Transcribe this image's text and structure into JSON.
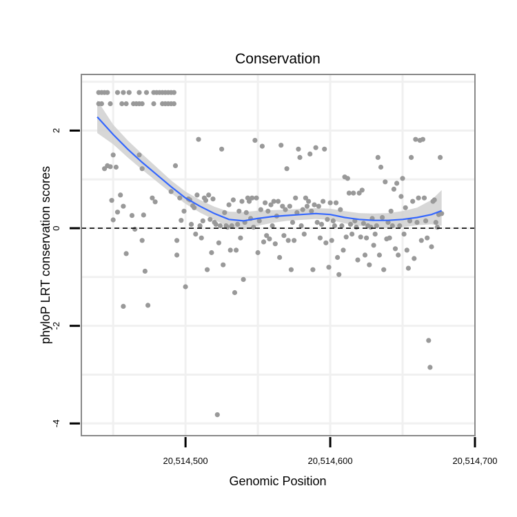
{
  "chart_data": {
    "type": "scatter",
    "title": "Conservation",
    "xlabel": "Genomic Position",
    "ylabel": "phyloP LRT conservation scores",
    "xlim": [
      20514428,
      20514700
    ],
    "ylim": [
      -4.25,
      3.15
    ],
    "x_ticks": [
      {
        "value": 20514500,
        "label": "20,514,500"
      },
      {
        "value": 20514600,
        "label": "20,514,600"
      },
      {
        "value": 20514700,
        "label": "20,514,700"
      }
    ],
    "y_ticks": [
      {
        "value": -4,
        "label": "-4"
      },
      {
        "value": -2,
        "label": "-2"
      },
      {
        "value": 0,
        "label": "0"
      },
      {
        "value": 2,
        "label": "2"
      }
    ],
    "reference_line": {
      "y": 0,
      "style": "dashed"
    },
    "colors": {
      "points": "#999999",
      "smooth_line": "#3366ff",
      "confidence_band": "#d0d0d0",
      "panel_border": "#888888",
      "grid": "#f0f0f0"
    },
    "series": [
      {
        "name": "phyloP scores",
        "points": [
          [
            20514440,
            2.78
          ],
          [
            20514442,
            2.78
          ],
          [
            20514444,
            2.78
          ],
          [
            20514446,
            2.78
          ],
          [
            20514453,
            2.78
          ],
          [
            20514457,
            2.78
          ],
          [
            20514461,
            2.78
          ],
          [
            20514468,
            2.78
          ],
          [
            20514473,
            2.78
          ],
          [
            20514478,
            2.78
          ],
          [
            20514480,
            2.78
          ],
          [
            20514482,
            2.78
          ],
          [
            20514484,
            2.78
          ],
          [
            20514486,
            2.78
          ],
          [
            20514488,
            2.78
          ],
          [
            20514490,
            2.78
          ],
          [
            20514492,
            2.78
          ],
          [
            20514440,
            2.55
          ],
          [
            20514442,
            2.55
          ],
          [
            20514448,
            2.55
          ],
          [
            20514456,
            2.55
          ],
          [
            20514459,
            2.55
          ],
          [
            20514464,
            2.55
          ],
          [
            20514466,
            2.55
          ],
          [
            20514468,
            2.55
          ],
          [
            20514470,
            2.55
          ],
          [
            20514478,
            2.55
          ],
          [
            20514484,
            2.55
          ],
          [
            20514486,
            2.55
          ],
          [
            20514488,
            2.55
          ],
          [
            20514490,
            2.55
          ],
          [
            20514492,
            2.55
          ],
          [
            20514444,
            1.22
          ],
          [
            20514446,
            1.28
          ],
          [
            20514448,
            1.26
          ],
          [
            20514450,
            1.5
          ],
          [
            20514452,
            1.25
          ],
          [
            20514455,
            0.68
          ],
          [
            20514457,
            0.45
          ],
          [
            20514449,
            0.57
          ],
          [
            20514450,
            0.17
          ],
          [
            20514453,
            0.33
          ],
          [
            20514459,
            -0.52
          ],
          [
            20514463,
            0.26
          ],
          [
            20514465,
            -0.02
          ],
          [
            20514468,
            1.5
          ],
          [
            20514470,
            1.22
          ],
          [
            20514471,
            0.27
          ],
          [
            20514470,
            -0.25
          ],
          [
            20514472,
            -0.88
          ],
          [
            20514474,
            -1.58
          ],
          [
            20514457,
            -1.6
          ],
          [
            20514477,
            0.62
          ],
          [
            20514479,
            0.54
          ],
          [
            20514490,
            0.75
          ],
          [
            20514493,
            1.28
          ],
          [
            20514494,
            -0.55
          ],
          [
            20514494,
            -0.25
          ],
          [
            20514496,
            0.62
          ],
          [
            20514497,
            0.16
          ],
          [
            20514499,
            0.35
          ],
          [
            20514500,
            -1.2
          ],
          [
            20514502,
            0.6
          ],
          [
            20514503,
            0.58
          ],
          [
            20514504,
            0.08
          ],
          [
            20514505,
            0.46
          ],
          [
            20514506,
            0.42
          ],
          [
            20514507,
            -0.12
          ],
          [
            20514508,
            0.68
          ],
          [
            20514509,
            1.82
          ],
          [
            20514510,
            0.05
          ],
          [
            20514511,
            -0.2
          ],
          [
            20514512,
            0.15
          ],
          [
            20514513,
            0.62
          ],
          [
            20514514,
            0.57
          ],
          [
            20514515,
            -0.85
          ],
          [
            20514516,
            0.68
          ],
          [
            20514517,
            0.18
          ],
          [
            20514518,
            -0.5
          ],
          [
            20514519,
            0.6
          ],
          [
            20514520,
            0.12
          ],
          [
            20514521,
            0.08
          ],
          [
            20514522,
            -3.82
          ],
          [
            20514523,
            -0.3
          ],
          [
            20514524,
            0.05
          ],
          [
            20514525,
            1.62
          ],
          [
            20514526,
            -0.75
          ],
          [
            20514527,
            0.32
          ],
          [
            20514528,
            0.05
          ],
          [
            20514529,
            0.02
          ],
          [
            20514530,
            0.48
          ],
          [
            20514531,
            -0.45
          ],
          [
            20514532,
            0.05
          ],
          [
            20514533,
            0.58
          ],
          [
            20514534,
            -1.32
          ],
          [
            20514535,
            -0.45
          ],
          [
            20514536,
            0.08
          ],
          [
            20514537,
            0.35
          ],
          [
            20514538,
            -0.2
          ],
          [
            20514539,
            0.55
          ],
          [
            20514540,
            -1.05
          ],
          [
            20514541,
            0.12
          ],
          [
            20514542,
            0.32
          ],
          [
            20514543,
            0.62
          ],
          [
            20514544,
            0.55
          ],
          [
            20514545,
            0.2
          ],
          [
            20514546,
            0.62
          ],
          [
            20514547,
            0.02
          ],
          [
            20514548,
            1.8
          ],
          [
            20514549,
            0.62
          ],
          [
            20514550,
            -0.5
          ],
          [
            20514551,
            0.15
          ],
          [
            20514552,
            0.38
          ],
          [
            20514553,
            1.68
          ],
          [
            20514554,
            -0.28
          ],
          [
            20514555,
            0.52
          ],
          [
            20514556,
            -0.15
          ],
          [
            20514557,
            0.35
          ],
          [
            20514558,
            -0.22
          ],
          [
            20514559,
            0.48
          ],
          [
            20514560,
            0.05
          ],
          [
            20514561,
            0.55
          ],
          [
            20514562,
            -0.32
          ],
          [
            20514563,
            0.25
          ],
          [
            20514564,
            0.55
          ],
          [
            20514565,
            -0.6
          ],
          [
            20514566,
            1.7
          ],
          [
            20514567,
            0.45
          ],
          [
            20514568,
            -0.15
          ],
          [
            20514569,
            0.38
          ],
          [
            20514570,
            1.22
          ],
          [
            20514571,
            -0.25
          ],
          [
            20514572,
            0.45
          ],
          [
            20514573,
            -0.85
          ],
          [
            20514574,
            0.12
          ],
          [
            20514575,
            -0.25
          ],
          [
            20514576,
            0.62
          ],
          [
            20514577,
            0.32
          ],
          [
            20514578,
            1.62
          ],
          [
            20514579,
            1.45
          ],
          [
            20514580,
            0.05
          ],
          [
            20514581,
            0.38
          ],
          [
            20514582,
            -0.12
          ],
          [
            20514583,
            0.62
          ],
          [
            20514584,
            0.45
          ],
          [
            20514585,
            0.55
          ],
          [
            20514586,
            1.52
          ],
          [
            20514587,
            0.35
          ],
          [
            20514588,
            -0.85
          ],
          [
            20514589,
            0.48
          ],
          [
            20514590,
            1.65
          ],
          [
            20514591,
            0.12
          ],
          [
            20514592,
            0.45
          ],
          [
            20514593,
            -0.2
          ],
          [
            20514594,
            0.08
          ],
          [
            20514595,
            0.55
          ],
          [
            20514596,
            1.62
          ],
          [
            20514597,
            -0.3
          ],
          [
            20514598,
            0.18
          ],
          [
            20514599,
            -0.8
          ],
          [
            20514600,
            0.52
          ],
          [
            20514601,
            -0.25
          ],
          [
            20514602,
            0.15
          ],
          [
            20514603,
            0.05
          ],
          [
            20514604,
            0.52
          ],
          [
            20514605,
            -0.6
          ],
          [
            20514606,
            -0.95
          ],
          [
            20514607,
            0.38
          ],
          [
            20514608,
            0.05
          ],
          [
            20514609,
            -0.45
          ],
          [
            20514610,
            1.05
          ],
          [
            20514611,
            -0.18
          ],
          [
            20514612,
            1.02
          ],
          [
            20514613,
            0.72
          ],
          [
            20514614,
            0.08
          ],
          [
            20514615,
            -0.12
          ],
          [
            20514616,
            0.72
          ],
          [
            20514617,
            0.15
          ],
          [
            20514618,
            0.02
          ],
          [
            20514619,
            -0.65
          ],
          [
            20514620,
            0.72
          ],
          [
            20514621,
            -0.18
          ],
          [
            20514622,
            0.78
          ],
          [
            20514623,
            0.1
          ],
          [
            20514624,
            -0.55
          ],
          [
            20514625,
            -0.2
          ],
          [
            20514626,
            0.05
          ],
          [
            20514627,
            -0.75
          ],
          [
            20514628,
            0.02
          ],
          [
            20514629,
            0.2
          ],
          [
            20514630,
            -0.35
          ],
          [
            20514631,
            -0.12
          ],
          [
            20514632,
            0.05
          ],
          [
            20514633,
            1.45
          ],
          [
            20514634,
            -0.55
          ],
          [
            20514635,
            1.25
          ],
          [
            20514636,
            0.22
          ],
          [
            20514637,
            -0.85
          ],
          [
            20514638,
            0.95
          ],
          [
            20514639,
            -0.22
          ],
          [
            20514640,
            0.12
          ],
          [
            20514641,
            -0.2
          ],
          [
            20514642,
            0.35
          ],
          [
            20514643,
            0.05
          ],
          [
            20514644,
            0.8
          ],
          [
            20514645,
            -0.42
          ],
          [
            20514646,
            0.92
          ],
          [
            20514647,
            -0.55
          ],
          [
            20514648,
            0.05
          ],
          [
            20514649,
            0.65
          ],
          [
            20514650,
            1.02
          ],
          [
            20514651,
            -0.12
          ],
          [
            20514652,
            0.42
          ],
          [
            20514653,
            -0.45
          ],
          [
            20514654,
            -0.82
          ],
          [
            20514655,
            0.15
          ],
          [
            20514656,
            1.45
          ],
          [
            20514657,
            0.55
          ],
          [
            20514658,
            -0.62
          ],
          [
            20514659,
            1.82
          ],
          [
            20514660,
            0.12
          ],
          [
            20514661,
            0.62
          ],
          [
            20514662,
            1.8
          ],
          [
            20514663,
            -0.25
          ],
          [
            20514664,
            1.82
          ],
          [
            20514665,
            0.62
          ],
          [
            20514666,
            0.15
          ],
          [
            20514667,
            -0.2
          ],
          [
            20514668,
            -2.3
          ],
          [
            20514669,
            -2.85
          ],
          [
            20514670,
            -0.38
          ],
          [
            20514671,
            0.55
          ],
          [
            20514672,
            0.58
          ],
          [
            20514673,
            0.12
          ],
          [
            20514674,
            0.02
          ],
          [
            20514675,
            0.28
          ],
          [
            20514676,
            1.45
          ],
          [
            20514677,
            0.3
          ]
        ]
      }
    ],
    "smooth": {
      "name": "loess fit",
      "x": [
        20514439,
        20514450,
        20514460,
        20514470,
        20514480,
        20514490,
        20514500,
        20514510,
        20514520,
        20514530,
        20514540,
        20514550,
        20514560,
        20514570,
        20514580,
        20514590,
        20514600,
        20514610,
        20514620,
        20514630,
        20514640,
        20514650,
        20514660,
        20514670,
        20514677
      ],
      "y": [
        2.28,
        1.92,
        1.62,
        1.35,
        1.1,
        0.85,
        0.62,
        0.45,
        0.3,
        0.18,
        0.15,
        0.2,
        0.24,
        0.26,
        0.28,
        0.3,
        0.28,
        0.22,
        0.18,
        0.16,
        0.16,
        0.18,
        0.22,
        0.28,
        0.36
      ],
      "lower": [
        1.95,
        1.72,
        1.45,
        1.2,
        0.96,
        0.72,
        0.5,
        0.32,
        0.17,
        0.02,
        -0.03,
        0.05,
        0.11,
        0.15,
        0.17,
        0.19,
        0.17,
        0.1,
        0.05,
        0.02,
        0.0,
        0.02,
        0.06,
        0.08,
        0.05
      ],
      "upper": [
        2.62,
        2.12,
        1.8,
        1.52,
        1.25,
        0.98,
        0.75,
        0.58,
        0.44,
        0.34,
        0.33,
        0.36,
        0.37,
        0.38,
        0.4,
        0.41,
        0.4,
        0.35,
        0.31,
        0.3,
        0.31,
        0.35,
        0.42,
        0.58,
        0.78
      ]
    }
  }
}
